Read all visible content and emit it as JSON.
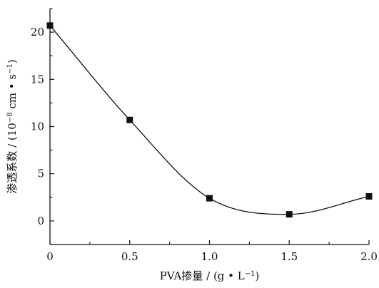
{
  "chart_data": {
    "type": "scatter",
    "x_label_parts": {
      "main": "PVA掺量 / (g • L",
      "sup": "−1",
      "end": ")"
    },
    "y_label_parts": {
      "main": "渗透系数 / (10",
      "sup1": "−8",
      "mid": " cm • s",
      "sup2": "−1",
      "end": ")"
    },
    "xlim": [
      0,
      2.0
    ],
    "ylim": [
      -2.5,
      22.5
    ],
    "x_ticks": [
      {
        "v": 0,
        "label": "0"
      },
      {
        "v": 0.5,
        "label": "0.5"
      },
      {
        "v": 1.0,
        "label": "1.0"
      },
      {
        "v": 1.5,
        "label": "1.5"
      },
      {
        "v": 2.0,
        "label": "2.0"
      }
    ],
    "y_ticks": [
      {
        "v": 0,
        "label": "0"
      },
      {
        "v": 5,
        "label": "5"
      },
      {
        "v": 10,
        "label": "10"
      },
      {
        "v": 15,
        "label": "15"
      },
      {
        "v": 20,
        "label": "20"
      }
    ],
    "grid": false,
    "series": [
      {
        "x": [
          0,
          0.5,
          1.0,
          1.5,
          2.0
        ],
        "y": [
          20.7,
          10.7,
          2.4,
          0.7,
          2.6
        ],
        "marker": "square",
        "fit_curve": true
      }
    ],
    "colors": {
      "ink": "#111111"
    }
  }
}
